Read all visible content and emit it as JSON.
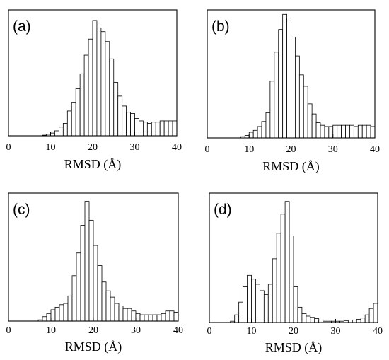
{
  "chart_data": [
    {
      "type": "bar",
      "panel_label": "(a)",
      "xlabel": "RMSD (Å)",
      "xlim": [
        0,
        40
      ],
      "xticks": [
        0,
        10,
        20,
        30,
        40
      ],
      "bin_width": 1,
      "bin_starts": [
        0,
        1,
        2,
        3,
        4,
        5,
        6,
        7,
        8,
        9,
        10,
        11,
        12,
        13,
        14,
        15,
        16,
        17,
        18,
        19,
        20,
        21,
        22,
        23,
        24,
        25,
        26,
        27,
        28,
        29,
        30,
        31,
        32,
        33,
        34,
        35,
        36,
        37,
        38,
        39
      ],
      "values": [
        0,
        0,
        0,
        0,
        0,
        0,
        0,
        0,
        0.005,
        0.012,
        0.022,
        0.04,
        0.07,
        0.1,
        0.2,
        0.27,
        0.38,
        0.5,
        0.65,
        0.78,
        0.93,
        0.87,
        0.84,
        0.76,
        0.62,
        0.43,
        0.32,
        0.24,
        0.19,
        0.18,
        0.14,
        0.12,
        0.11,
        0.1,
        0.11,
        0.11,
        0.12,
        0.12,
        0.12,
        0.12
      ]
    },
    {
      "type": "bar",
      "panel_label": "(b)",
      "xlabel": "RMSD (Å)",
      "xlim": [
        0,
        40
      ],
      "xticks": [
        0,
        10,
        20,
        30,
        40
      ],
      "bin_width": 1,
      "bin_starts": [
        0,
        1,
        2,
        3,
        4,
        5,
        6,
        7,
        8,
        9,
        10,
        11,
        12,
        13,
        14,
        15,
        16,
        17,
        18,
        19,
        20,
        21,
        22,
        23,
        24,
        25,
        26,
        27,
        28,
        29,
        30,
        31,
        32,
        33,
        34,
        35,
        36,
        37,
        38,
        39
      ],
      "values": [
        0,
        0,
        0,
        0,
        0,
        0,
        0,
        0,
        0.01,
        0.02,
        0.045,
        0.06,
        0.09,
        0.13,
        0.2,
        0.45,
        0.68,
        0.86,
        0.98,
        0.95,
        0.8,
        0.65,
        0.5,
        0.41,
        0.27,
        0.19,
        0.12,
        0.1,
        0.09,
        0.09,
        0.1,
        0.1,
        0.1,
        0.1,
        0.1,
        0.09,
        0.1,
        0.1,
        0.1,
        0.09
      ]
    },
    {
      "type": "bar",
      "panel_label": "(c)",
      "xlabel": "RMSD (Å)",
      "xlim": [
        0,
        40
      ],
      "xticks": [
        0,
        10,
        20,
        30,
        40
      ],
      "bin_width": 1,
      "bin_starts": [
        0,
        1,
        2,
        3,
        4,
        5,
        6,
        7,
        8,
        9,
        10,
        11,
        12,
        13,
        14,
        15,
        16,
        17,
        18,
        19,
        20,
        21,
        22,
        23,
        24,
        25,
        26,
        27,
        28,
        29,
        30,
        31,
        32,
        33,
        34,
        35,
        36,
        37,
        38,
        39
      ],
      "values": [
        0,
        0,
        0,
        0,
        0,
        0,
        0,
        0.01,
        0.035,
        0.06,
        0.09,
        0.11,
        0.13,
        0.14,
        0.2,
        0.36,
        0.54,
        0.76,
        0.95,
        0.8,
        0.6,
        0.44,
        0.31,
        0.24,
        0.19,
        0.14,
        0.12,
        0.1,
        0.1,
        0.08,
        0.06,
        0.05,
        0.05,
        0.05,
        0.05,
        0.05,
        0.06,
        0.08,
        0.08,
        0.07
      ]
    },
    {
      "type": "bar",
      "panel_label": "(d)",
      "xlabel": "RMSD (Å)",
      "xlim": [
        0,
        40
      ],
      "xticks": [
        0,
        10,
        20,
        30,
        40
      ],
      "bin_width": 1,
      "bin_starts": [
        0,
        1,
        2,
        3,
        4,
        5,
        6,
        7,
        8,
        9,
        10,
        11,
        12,
        13,
        14,
        15,
        16,
        17,
        18,
        19,
        20,
        21,
        22,
        23,
        24,
        25,
        26,
        27,
        28,
        29,
        30,
        31,
        32,
        33,
        34,
        35,
        36,
        37,
        38,
        39
      ],
      "values": [
        0,
        0,
        0,
        0,
        0,
        0.01,
        0.06,
        0.16,
        0.28,
        0.37,
        0.34,
        0.3,
        0.25,
        0.22,
        0.3,
        0.5,
        0.7,
        0.85,
        0.95,
        0.68,
        0.28,
        0.12,
        0.07,
        0.05,
        0.04,
        0.03,
        0.02,
        0.01,
        0.01,
        0.01,
        0.01,
        0.01,
        0.015,
        0.02,
        0.02,
        0.025,
        0.035,
        0.06,
        0.11,
        0.15
      ]
    }
  ]
}
